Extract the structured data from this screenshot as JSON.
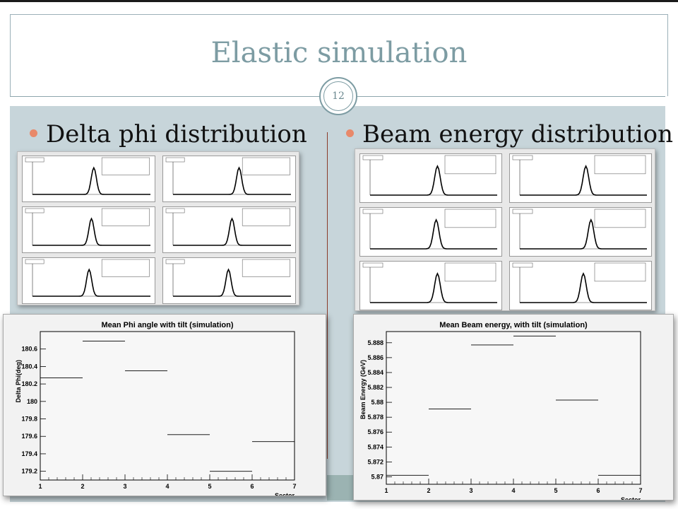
{
  "slide": {
    "title": "Elastic simulation",
    "page_number": "12",
    "left_heading": "Delta phi distribution",
    "right_heading": "Beam energy distribution"
  },
  "colors": {
    "title": "#7d9ca3",
    "bullet": "#e8896a",
    "content_bg": "#c7d5da"
  },
  "chart_data": [
    {
      "type": "scatter",
      "title": "Mean Phi angle with tilt (simulation)",
      "xlabel": "Sector",
      "ylabel": "Delta Phi(deg)",
      "xlim": [
        1,
        7
      ],
      "ylim": [
        179.1,
        180.8
      ],
      "xticks": [
        "1",
        "2",
        "3",
        "4",
        "5",
        "6",
        "7"
      ],
      "yticks": [
        "179.2",
        "179.4",
        "179.6",
        "179.8",
        "180",
        "180.2",
        "180.4",
        "180.6"
      ],
      "points": [
        {
          "x": 1.5,
          "y": 180.27
        },
        {
          "x": 2.5,
          "y": 180.69
        },
        {
          "x": 3.5,
          "y": 180.35
        },
        {
          "x": 4.5,
          "y": 179.62
        },
        {
          "x": 5.5,
          "y": 179.2
        },
        {
          "x": 6.5,
          "y": 179.54
        }
      ],
      "xerr": 0.5,
      "grid": false
    },
    {
      "type": "scatter",
      "title": "Mean Beam energy, with tilt (simulation)",
      "xlabel": "Sector",
      "ylabel": "Beam Energy (GeV)",
      "xlim": [
        1,
        7
      ],
      "ylim": [
        5.869,
        5.8895
      ],
      "xticks": [
        "1",
        "2",
        "3",
        "4",
        "5",
        "6",
        "7"
      ],
      "yticks": [
        "5.87",
        "5.872",
        "5.874",
        "5.876",
        "5.878",
        "5.88",
        "5.882",
        "5.884",
        "5.886",
        "5.888"
      ],
      "points": [
        {
          "x": 1.5,
          "y": 5.8702
        },
        {
          "x": 2.5,
          "y": 5.8791
        },
        {
          "x": 3.5,
          "y": 5.8877
        },
        {
          "x": 4.5,
          "y": 5.8889
        },
        {
          "x": 5.5,
          "y": 5.8803
        },
        {
          "x": 6.5,
          "y": 5.8702
        }
      ],
      "xerr": 0.5,
      "grid": false
    }
  ]
}
